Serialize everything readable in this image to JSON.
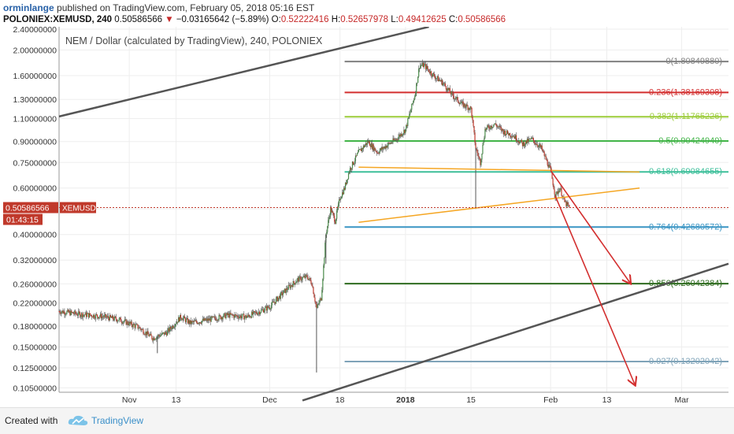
{
  "header": {
    "author": "orminlange",
    "published": "published on TradingView.com, February 05, 2018 05:16 EST",
    "symbol": "POLONIEX:XEMUSD, 240",
    "last": "0.50586566",
    "change": "−0.03165642 (−5.89%)",
    "o_key": "O:",
    "o_val": "0.52222416",
    "h_key": "H:",
    "h_val": "0.52657978",
    "l_key": "L:",
    "l_val": "0.49412625",
    "c_key": "C:",
    "c_val": "0.50586566"
  },
  "footer": {
    "created": "Created with",
    "brand": "TradingView"
  },
  "chart_data": {
    "type": "candlestick",
    "title": "NEM / Dollar (calculated by TradingView), 240, POLONIEX",
    "y_scale": "log",
    "y_ticks": [
      "2.40000000",
      "2.00000000",
      "1.60000000",
      "1.30000000",
      "1.10000000",
      "0.90000000",
      "0.75000000",
      "0.60000000",
      "0.50000000",
      "0.40000000",
      "0.32000000",
      "0.26000000",
      "0.22000000",
      "0.18000000",
      "0.15000000",
      "0.12500000",
      "0.10500000"
    ],
    "x_ticks": [
      "Nov",
      "13",
      "Dec",
      "18",
      "2018",
      "15",
      "Feb",
      "13",
      "Mar"
    ],
    "x_range": [
      "2017-10-19",
      "2018-03-11"
    ],
    "price_label": {
      "value": "0.50586566",
      "symbol": "XEMUSD",
      "countdown": "01:43:15"
    },
    "fib_levels": [
      {
        "label": "0(1.80849880)",
        "value": 1.8084988,
        "color": "#808080"
      },
      {
        "label": "0.236(1.38169308)",
        "value": 1.38169308,
        "color": "#d32f2f"
      },
      {
        "label": "0.382(1.11765226)",
        "value": 1.11765226,
        "color": "#9ccc3a"
      },
      {
        "label": "0.5(0.90424940)",
        "value": 0.9042494,
        "color": "#43b549"
      },
      {
        "label": "0.618(0.69084655)",
        "value": 0.69084655,
        "color": "#3dbf9a"
      },
      {
        "label": "0.764(0.42680572)",
        "value": 0.42680572,
        "color": "#3a95c4"
      },
      {
        "label": "0.856(0.26042384)",
        "value": 0.26042384,
        "color": "#2e6b1f"
      },
      {
        "label": "0.927(0.13202042)",
        "value": 0.13202042,
        "color": "#7fa3b8"
      }
    ],
    "fib_x_range": [
      "2017-12-19",
      "2018-03-11"
    ],
    "price_series": [
      [
        "2017-10-19",
        0.205
      ],
      [
        "2017-10-23",
        0.2
      ],
      [
        "2017-10-28",
        0.196
      ],
      [
        "2017-11-01",
        0.19
      ],
      [
        "2017-11-05",
        0.178
      ],
      [
        "2017-11-08",
        0.162
      ],
      [
        "2017-11-11",
        0.17
      ],
      [
        "2017-11-14",
        0.195
      ],
      [
        "2017-11-16",
        0.185
      ],
      [
        "2017-11-20",
        0.19
      ],
      [
        "2017-11-24",
        0.198
      ],
      [
        "2017-11-28",
        0.195
      ],
      [
        "2017-12-01",
        0.205
      ],
      [
        "2017-12-03",
        0.213
      ],
      [
        "2017-12-05",
        0.232
      ],
      [
        "2017-12-07",
        0.252
      ],
      [
        "2017-12-09",
        0.27
      ],
      [
        "2017-12-11",
        0.277
      ],
      [
        "2017-12-12",
        0.262
      ],
      [
        "2017-12-13",
        0.21
      ],
      [
        "2017-12-14",
        0.23
      ],
      [
        "2017-12-15",
        0.4
      ],
      [
        "2017-12-16",
        0.5
      ],
      [
        "2017-12-17",
        0.45
      ],
      [
        "2017-12-18",
        0.55
      ],
      [
        "2017-12-19",
        0.6
      ],
      [
        "2017-12-20",
        0.7
      ],
      [
        "2017-12-22",
        0.82
      ],
      [
        "2017-12-24",
        0.9
      ],
      [
        "2017-12-26",
        0.82
      ],
      [
        "2017-12-28",
        0.87
      ],
      [
        "2017-12-30",
        0.92
      ],
      [
        "2018-01-01",
        1.0
      ],
      [
        "2018-01-03",
        1.35
      ],
      [
        "2018-01-04",
        1.75
      ],
      [
        "2018-01-05",
        1.75
      ],
      [
        "2018-01-07",
        1.6
      ],
      [
        "2018-01-09",
        1.5
      ],
      [
        "2018-01-11",
        1.35
      ],
      [
        "2018-01-13",
        1.25
      ],
      [
        "2018-01-15",
        1.2
      ],
      [
        "2018-01-16",
        0.85
      ],
      [
        "2018-01-17",
        0.75
      ],
      [
        "2018-01-18",
        1.0
      ],
      [
        "2018-01-20",
        1.05
      ],
      [
        "2018-01-22",
        0.98
      ],
      [
        "2018-01-24",
        0.95
      ],
      [
        "2018-01-26",
        0.88
      ],
      [
        "2018-01-28",
        0.92
      ],
      [
        "2018-01-30",
        0.85
      ],
      [
        "2018-02-01",
        0.7
      ],
      [
        "2018-02-02",
        0.56
      ],
      [
        "2018-02-03",
        0.6
      ],
      [
        "2018-02-04",
        0.53
      ],
      [
        "2018-02-05",
        0.506
      ]
    ],
    "spikes": [
      {
        "date": "2017-11-09",
        "low": 0.142
      },
      {
        "date": "2017-12-13",
        "low": 0.12
      },
      {
        "date": "2017-12-15",
        "low": 0.31
      },
      {
        "date": "2018-01-16",
        "low": 0.5
      }
    ],
    "trendlines": [
      {
        "type": "channel-upper",
        "color": "#555555",
        "p1": [
          "2017-10-19",
          1.12
        ],
        "p2": [
          "2018-01-06",
          2.45
        ]
      },
      {
        "type": "channel-lower",
        "color": "#555555",
        "p1": [
          "2017-12-10",
          0.094
        ],
        "p2": [
          "2018-03-11",
          0.31
        ]
      },
      {
        "type": "triangle-upper",
        "color": "#f5a623",
        "p1": [
          "2017-12-22",
          0.72
        ],
        "p2": [
          "2018-02-20",
          0.69
        ]
      },
      {
        "type": "triangle-lower",
        "color": "#f5a623",
        "p1": [
          "2017-12-22",
          0.445
        ],
        "p2": [
          "2018-02-20",
          0.6
        ]
      },
      {
        "type": "arrow",
        "color": "#d32f2f",
        "p1": [
          "2018-02-01",
          0.7
        ],
        "p2": [
          "2018-02-18",
          0.262
        ]
      },
      {
        "type": "arrow",
        "color": "#d32f2f",
        "p1": [
          "2018-02-02",
          0.56
        ],
        "p2": [
          "2018-02-19",
          0.108
        ]
      }
    ]
  }
}
